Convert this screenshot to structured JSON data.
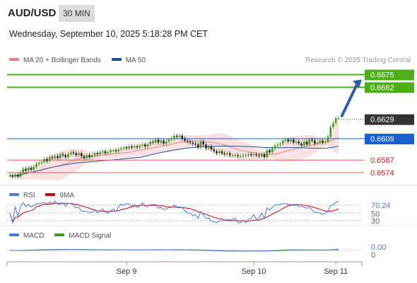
{
  "header": {
    "pair": "AUD/USD",
    "interval": "30 MIN",
    "datetime": "Wednesday, September 10, 2025 5:18:28 PM CET"
  },
  "legend": {
    "ma20_label": "MA 20 + Bollinger Bands",
    "ma50_label": "MA 50",
    "ma20_color": "#f08080",
    "ma50_color": "#1f4e9c",
    "research": "Research © 2025 Trading Central"
  },
  "rsi_legend": {
    "rsi_label": "RSI",
    "ma_label": "9MA",
    "rsi_color": "#4a78d6",
    "ma_color": "#d00000"
  },
  "macd_legend": {
    "macd_label": "MACD",
    "signal_label": "MACD Signal",
    "macd_color": "#4a78d6",
    "signal_color": "#3a9d1a"
  },
  "chart_data": {
    "type": "candlestick",
    "ylim": [
      0.6566,
      0.6679
    ],
    "x_ticks": [
      {
        "label": "Sep 9",
        "index": 44
      },
      {
        "label": "Sep 10",
        "index": 92
      },
      {
        "label": "Sep 11",
        "index": 123
      }
    ],
    "closes": [
      0.6571,
      0.657,
      0.6572,
      0.657,
      0.6574,
      0.6578,
      0.6576,
      0.6579,
      0.6577,
      0.658,
      0.6583,
      0.6584,
      0.6585,
      0.6588,
      0.6586,
      0.659,
      0.6589,
      0.6591,
      0.6589,
      0.6593,
      0.6592,
      0.659,
      0.6593,
      0.6595,
      0.6594,
      0.6592,
      0.6594,
      0.6591,
      0.6589,
      0.6592,
      0.659,
      0.6592,
      0.6594,
      0.6593,
      0.6595,
      0.6596,
      0.6594,
      0.6595,
      0.6597,
      0.6597,
      0.6596,
      0.6598,
      0.6599,
      0.66,
      0.6599,
      0.6601,
      0.66,
      0.6601,
      0.66,
      0.6602,
      0.6603,
      0.6601,
      0.6603,
      0.6606,
      0.6605,
      0.6608,
      0.6605,
      0.6607,
      0.6604,
      0.6606,
      0.6608,
      0.6609,
      0.6612,
      0.6611,
      0.6612,
      0.6609,
      0.6607,
      0.6606,
      0.6605,
      0.6604,
      0.6603,
      0.66,
      0.6606,
      0.6603,
      0.6599,
      0.6601,
      0.6598,
      0.6596,
      0.6594,
      0.6596,
      0.6594,
      0.6593,
      0.6594,
      0.6592,
      0.6592,
      0.6592,
      0.6591,
      0.6591,
      0.6592,
      0.6592,
      0.6593,
      0.6592,
      0.6593,
      0.6592,
      0.6591,
      0.6593,
      0.659,
      0.6597,
      0.6595,
      0.6599,
      0.6602,
      0.6603,
      0.6604,
      0.6607,
      0.6608,
      0.6606,
      0.6608,
      0.6605,
      0.6606,
      0.6604,
      0.6602,
      0.6606,
      0.6603,
      0.6608,
      0.6607,
      0.6604,
      0.6605,
      0.6607,
      0.6605,
      0.6606,
      0.6611,
      0.6621,
      0.6625,
      0.663,
      0.663
    ],
    "price_lines": [
      {
        "value": 0.6675,
        "label": "0.6675",
        "color": "#4caf1a",
        "style": "solid"
      },
      {
        "value": 0.6662,
        "label": "0.6662",
        "color": "#4caf1a",
        "style": "solid"
      },
      {
        "value": 0.6629,
        "label": "0.6629",
        "color": "#333333",
        "style": "dotted"
      },
      {
        "value": 0.6609,
        "label": "0.6609",
        "color": "#1a5fcf",
        "style": "solid"
      },
      {
        "value": 0.6587,
        "label": "0.6587",
        "color": "#e06060",
        "style": "solid"
      },
      {
        "value": 0.6574,
        "label": "0.6574",
        "color": "#e06060",
        "style": "solid"
      }
    ],
    "rsi": {
      "level_labels": [
        "70.24",
        "50",
        "30"
      ],
      "current": 70.24
    },
    "macd": {
      "level_labels": [
        "0.00",
        "0"
      ],
      "current": 0.0
    }
  }
}
